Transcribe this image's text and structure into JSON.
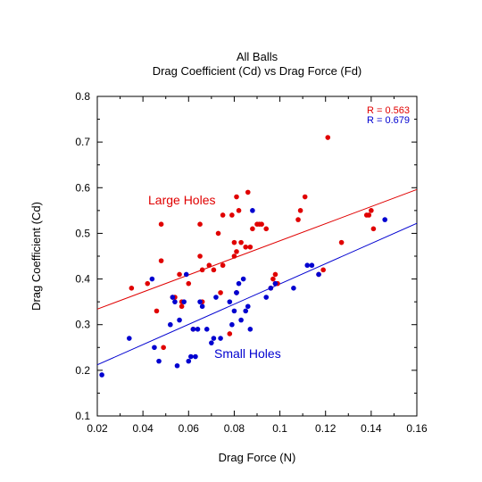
{
  "chart_data": {
    "type": "scatter",
    "title": "All Balls",
    "subtitle": "Drag Coefficient (Cd) vs Drag Force (Fd)",
    "xlabel": "Drag Force  (N)",
    "ylabel": "Drag Coefficient (Cd)",
    "xlim": [
      0.02,
      0.16
    ],
    "ylim": [
      0.1,
      0.8
    ],
    "xticks": [
      0.02,
      0.04,
      0.06,
      0.08,
      0.1,
      0.12,
      0.14,
      0.16
    ],
    "yticks": [
      0.1,
      0.2,
      0.3,
      0.4,
      0.5,
      0.6,
      0.7,
      0.8
    ],
    "grid": false,
    "series": [
      {
        "name": "Large Holes",
        "color": "#e00000",
        "r_label": "R = 0.563",
        "fit": [
          [
            0.02,
            0.334
          ],
          [
            0.16,
            0.596
          ]
        ],
        "x": [
          0.035,
          0.042,
          0.046,
          0.048,
          0.048,
          0.049,
          0.053,
          0.054,
          0.056,
          0.057,
          0.057,
          0.06,
          0.062,
          0.065,
          0.065,
          0.066,
          0.066,
          0.069,
          0.071,
          0.073,
          0.074,
          0.075,
          0.075,
          0.078,
          0.079,
          0.08,
          0.08,
          0.081,
          0.081,
          0.081,
          0.082,
          0.083,
          0.085,
          0.086,
          0.087,
          0.088,
          0.09,
          0.091,
          0.092,
          0.094,
          0.096,
          0.097,
          0.098,
          0.098,
          0.099,
          0.108,
          0.109,
          0.111,
          0.117,
          0.119,
          0.121,
          0.127,
          0.138,
          0.139,
          0.14,
          0.141
        ],
        "y": [
          0.38,
          0.39,
          0.33,
          0.44,
          0.52,
          0.25,
          0.36,
          0.36,
          0.41,
          0.35,
          0.34,
          0.39,
          0.29,
          0.52,
          0.45,
          0.42,
          0.35,
          0.43,
          0.42,
          0.5,
          0.37,
          0.43,
          0.54,
          0.28,
          0.54,
          0.48,
          0.45,
          0.46,
          0.58,
          0.37,
          0.55,
          0.48,
          0.47,
          0.59,
          0.47,
          0.51,
          0.52,
          0.52,
          0.52,
          0.51,
          0.38,
          0.4,
          0.41,
          0.39,
          0.39,
          0.53,
          0.55,
          0.58,
          0.41,
          0.42,
          0.71,
          0.48,
          0.54,
          0.54,
          0.55,
          0.51
        ]
      },
      {
        "name": "Small Holes",
        "color": "#0000d0",
        "r_label": "R = 0.679",
        "fit": [
          [
            0.02,
            0.212
          ],
          [
            0.16,
            0.522
          ]
        ],
        "x": [
          0.022,
          0.034,
          0.044,
          0.045,
          0.047,
          0.052,
          0.053,
          0.054,
          0.055,
          0.056,
          0.058,
          0.059,
          0.06,
          0.061,
          0.062,
          0.063,
          0.064,
          0.065,
          0.066,
          0.068,
          0.07,
          0.071,
          0.072,
          0.074,
          0.078,
          0.079,
          0.08,
          0.081,
          0.081,
          0.082,
          0.083,
          0.084,
          0.085,
          0.086,
          0.087,
          0.088,
          0.094,
          0.096,
          0.098,
          0.106,
          0.112,
          0.114,
          0.117,
          0.146
        ],
        "y": [
          0.19,
          0.27,
          0.4,
          0.25,
          0.22,
          0.3,
          0.36,
          0.35,
          0.21,
          0.31,
          0.35,
          0.41,
          0.22,
          0.23,
          0.29,
          0.23,
          0.29,
          0.35,
          0.34,
          0.29,
          0.26,
          0.27,
          0.36,
          0.27,
          0.35,
          0.3,
          0.33,
          0.37,
          0.37,
          0.39,
          0.31,
          0.4,
          0.33,
          0.34,
          0.29,
          0.55,
          0.36,
          0.38,
          0.39,
          0.38,
          0.43,
          0.43,
          0.41,
          0.53
        ]
      }
    ]
  },
  "annotations": {
    "large_holes": "Large Holes",
    "small_holes": "Small Holes"
  }
}
